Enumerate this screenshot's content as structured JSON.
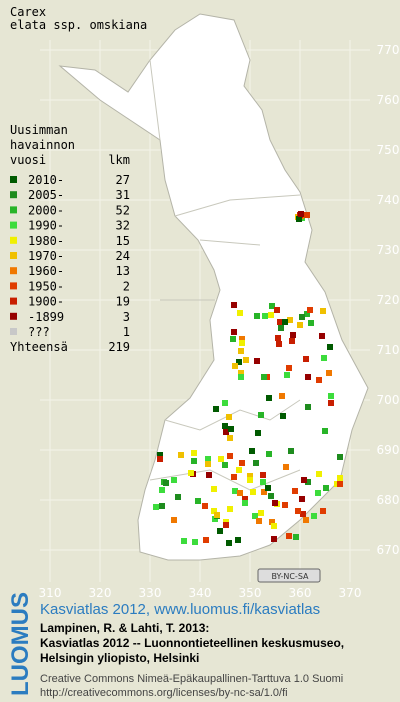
{
  "title": [
    "Carex",
    "elata ssp. omskiana"
  ],
  "legend": {
    "heading": [
      "Uusimman",
      "havainnon"
    ],
    "col_headers": [
      "vuosi",
      "lkm"
    ],
    "rows": [
      {
        "label": "2010-",
        "count": 27,
        "color": "#005a00"
      },
      {
        "label": "2005-",
        "count": 31,
        "color": "#1e8c1e"
      },
      {
        "label": "2000-",
        "count": 52,
        "color": "#28b428"
      },
      {
        "label": "1990-",
        "count": 32,
        "color": "#3cdc3c"
      },
      {
        "label": "1980-",
        "count": 15,
        "color": "#f0f000"
      },
      {
        "label": "1970-",
        "count": 24,
        "color": "#f0c000"
      },
      {
        "label": "1960-",
        "count": 13,
        "color": "#f07800"
      },
      {
        "label": "1950-",
        "count": 2,
        "color": "#e03c00"
      },
      {
        "label": "1900-",
        "count": 19,
        "color": "#c81e00"
      },
      {
        "label": "-1899",
        "count": 3,
        "color": "#960000"
      },
      {
        "label": "???",
        "count": 1,
        "color": "#c8c8c8"
      }
    ],
    "total": {
      "label": "Yhteensä",
      "count": 219
    }
  },
  "grid": {
    "x_labels": [
      310,
      320,
      330,
      340,
      350,
      360,
      370
    ],
    "y_labels": [
      770,
      760,
      750,
      740,
      730,
      720,
      710,
      700,
      690,
      680,
      670
    ]
  },
  "cc_badge": "BY-NC-SA",
  "footer": {
    "logo": "LUOMUS",
    "link": "Kasviatlas 2012, www.luomus.fi/kasviatlas",
    "citation": [
      "Lampinen, R. & Lahti, T. 2013:",
      "Kasviatlas 2012 -- Luonnontieteellinen keskusmuseo,",
      "Helsingin yliopisto, Helsinki"
    ],
    "license": [
      "Creative Commons Nimeä-Epäkaupallinen-Tarttuva 1.0 Suomi",
      "http://creativecommons.org/licenses/by-nc-sa/1.0/fi"
    ]
  }
}
